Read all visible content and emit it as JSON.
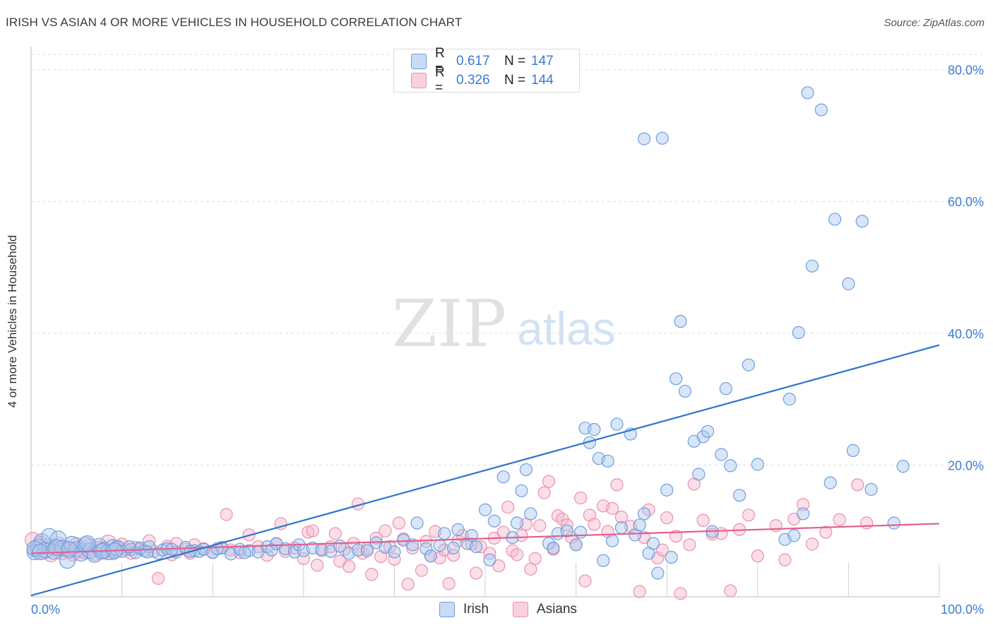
{
  "title": "IRISH VS ASIAN 4 OR MORE VEHICLES IN HOUSEHOLD CORRELATION CHART",
  "source": "Source: ZipAtlas.com",
  "watermark": {
    "zip": "ZIP",
    "atlas": "atlas"
  },
  "colors": {
    "irish_fill": "#aac8ee",
    "irish_stroke": "#6d9fe0",
    "irish_line": "#2f74d0",
    "asians_fill": "#f5b9cc",
    "asians_stroke": "#ec8fae",
    "asians_line": "#e2608e",
    "grid": "#dedede",
    "tick_label": "#3a7bd5"
  },
  "legend_top": [
    {
      "swatch": "irish",
      "r_label": "R =",
      "r_value": "0.617",
      "n_label": "N =",
      "n_value": "147"
    },
    {
      "swatch": "asians",
      "r_label": "R =",
      "r_value": "0.326",
      "n_label": "N =",
      "n_value": "144"
    }
  ],
  "legend_bottom": [
    {
      "swatch": "irish",
      "label": "Irish"
    },
    {
      "swatch": "asians",
      "label": "Asians"
    }
  ],
  "chart_data": {
    "type": "scatter",
    "title": "IRISH VS ASIAN 4 OR MORE VEHICLES IN HOUSEHOLD CORRELATION CHART",
    "xlabel": "",
    "ylabel": "4 or more Vehicles in Household",
    "xlim": [
      0,
      100
    ],
    "ylim": [
      0,
      82
    ],
    "x_ticks": [
      {
        "value": 0,
        "label": "0.0%"
      },
      {
        "value": 100,
        "label": "100.0%"
      }
    ],
    "y_ticks": [
      {
        "value": 20,
        "label": "20.0%"
      },
      {
        "value": 40,
        "label": "40.0%"
      },
      {
        "value": 60,
        "label": "60.0%"
      },
      {
        "value": 80,
        "label": "80.0%"
      }
    ],
    "grid": true,
    "legend_position": "top-center",
    "series": [
      {
        "name": "Irish",
        "points": [
          [
            0.4,
            6.8
          ],
          [
            0.8,
            7.6
          ],
          [
            1.2,
            8.4
          ],
          [
            1.6,
            7.1
          ],
          [
            2.0,
            9.2
          ],
          [
            2.5,
            6.9
          ],
          [
            3.0,
            8.8
          ],
          [
            3.5,
            7.4
          ],
          [
            4.0,
            5.5
          ],
          [
            4.5,
            8.0
          ],
          [
            5.0,
            7.2
          ],
          [
            5.5,
            6.6
          ],
          [
            6.0,
            7.9
          ],
          [
            6.5,
            7.0
          ],
          [
            7.0,
            6.4
          ],
          [
            7.5,
            7.7
          ],
          [
            8.0,
            7.1
          ],
          [
            8.5,
            6.8
          ],
          [
            9.0,
            7.5
          ],
          [
            9.5,
            7.3
          ],
          [
            10.0,
            6.9
          ],
          [
            11.0,
            7.2
          ],
          [
            11.5,
            6.7
          ],
          [
            12.0,
            7.4
          ],
          [
            12.5,
            7.0
          ],
          [
            13.0,
            7.6
          ],
          [
            14.0,
            6.6
          ],
          [
            14.5,
            7.1
          ],
          [
            15.0,
            7.3
          ],
          [
            16.0,
            6.8
          ],
          [
            17.0,
            7.5
          ],
          [
            18.0,
            7.0
          ],
          [
            18.5,
            6.9
          ],
          [
            19.0,
            7.2
          ],
          [
            20.0,
            6.7
          ],
          [
            21.0,
            7.4
          ],
          [
            22.0,
            6.5
          ],
          [
            23.0,
            7.2
          ],
          [
            24.0,
            7.0
          ],
          [
            25.0,
            6.8
          ],
          [
            26.0,
            7.6
          ],
          [
            27.0,
            8.1
          ],
          [
            28.0,
            7.3
          ],
          [
            29.0,
            6.8
          ],
          [
            29.5,
            7.9
          ],
          [
            30.0,
            7.0
          ],
          [
            31.0,
            7.4
          ],
          [
            32.0,
            7.2
          ],
          [
            33.0,
            6.9
          ],
          [
            34.0,
            7.7
          ],
          [
            35.0,
            6.6
          ],
          [
            36.0,
            7.1
          ],
          [
            37.0,
            7.0
          ],
          [
            38.0,
            8.2
          ],
          [
            39.0,
            7.5
          ],
          [
            40.0,
            6.8
          ],
          [
            41.0,
            8.6
          ],
          [
            42.0,
            7.9
          ],
          [
            42.5,
            11.2
          ],
          [
            43.5,
            7.3
          ],
          [
            44.0,
            6.2
          ],
          [
            45.0,
            7.8
          ],
          [
            45.5,
            9.6
          ],
          [
            46.5,
            7.4
          ],
          [
            47.0,
            10.2
          ],
          [
            48.0,
            8.1
          ],
          [
            48.5,
            9.3
          ],
          [
            49.0,
            7.6
          ],
          [
            50.0,
            13.2
          ],
          [
            50.5,
            5.6
          ],
          [
            51.0,
            11.5
          ],
          [
            52.0,
            18.2
          ],
          [
            53.0,
            9.0
          ],
          [
            53.5,
            11.2
          ],
          [
            54.0,
            16.1
          ],
          [
            54.5,
            19.3
          ],
          [
            55.0,
            12.6
          ],
          [
            57.0,
            8.1
          ],
          [
            57.5,
            7.4
          ],
          [
            58.0,
            9.6
          ],
          [
            59.0,
            10.0
          ],
          [
            60.0,
            7.9
          ],
          [
            60.5,
            9.8
          ],
          [
            61.0,
            25.6
          ],
          [
            61.5,
            23.4
          ],
          [
            62.0,
            25.4
          ],
          [
            62.5,
            21.0
          ],
          [
            63.0,
            5.5
          ],
          [
            63.5,
            20.6
          ],
          [
            64.0,
            8.5
          ],
          [
            64.5,
            26.2
          ],
          [
            65.0,
            10.5
          ],
          [
            66.0,
            24.7
          ],
          [
            66.5,
            9.4
          ],
          [
            67.0,
            10.9
          ],
          [
            67.5,
            12.6
          ],
          [
            68.0,
            6.6
          ],
          [
            68.5,
            8.1
          ],
          [
            69.0,
            3.6
          ],
          [
            70.0,
            16.2
          ],
          [
            70.5,
            6.0
          ],
          [
            71.0,
            33.1
          ],
          [
            71.5,
            41.8
          ],
          [
            72.0,
            31.2
          ],
          [
            73.0,
            23.6
          ],
          [
            73.5,
            18.6
          ],
          [
            74.0,
            24.3
          ],
          [
            74.5,
            25.1
          ],
          [
            75.0,
            9.9
          ],
          [
            76.0,
            21.6
          ],
          [
            76.5,
            31.6
          ],
          [
            77.0,
            19.9
          ],
          [
            78.0,
            15.4
          ],
          [
            79.0,
            35.2
          ],
          [
            80.0,
            20.1
          ],
          [
            83.0,
            8.7
          ],
          [
            83.5,
            30.0
          ],
          [
            84.0,
            9.3
          ],
          [
            84.5,
            40.1
          ],
          [
            85.0,
            12.6
          ],
          [
            85.5,
            76.5
          ],
          [
            86.0,
            50.2
          ],
          [
            87.0,
            73.9
          ],
          [
            88.0,
            17.3
          ],
          [
            88.5,
            57.3
          ],
          [
            90.0,
            47.5
          ],
          [
            90.5,
            22.2
          ],
          [
            91.5,
            57.0
          ],
          [
            92.5,
            16.3
          ],
          [
            95.0,
            11.2
          ],
          [
            96.0,
            19.8
          ],
          [
            69.5,
            69.6
          ],
          [
            67.5,
            69.5
          ],
          [
            0.4,
            7.3
          ],
          [
            1.0,
            6.8
          ],
          [
            2.8,
            7.5
          ],
          [
            4.2,
            7.2
          ],
          [
            6.2,
            8.1
          ],
          [
            7.8,
            6.9
          ],
          [
            9.2,
            7.0
          ],
          [
            10.8,
            7.6
          ],
          [
            12.8,
            6.8
          ],
          [
            15.5,
            7.2
          ],
          [
            17.5,
            6.9
          ],
          [
            20.5,
            7.3
          ],
          [
            23.5,
            6.7
          ],
          [
            26.5,
            7.1
          ]
        ],
        "trend": [
          [
            0,
            0.2
          ],
          [
            100,
            38.2
          ]
        ]
      },
      {
        "name": "Asians",
        "points": [
          [
            0.2,
            8.6
          ],
          [
            0.6,
            7.2
          ],
          [
            1.0,
            8.0
          ],
          [
            1.4,
            6.9
          ],
          [
            1.8,
            7.6
          ],
          [
            2.2,
            6.5
          ],
          [
            2.6,
            7.3
          ],
          [
            3.0,
            7.9
          ],
          [
            3.4,
            6.8
          ],
          [
            3.8,
            7.4
          ],
          [
            4.2,
            7.0
          ],
          [
            4.6,
            6.6
          ],
          [
            5.0,
            7.8
          ],
          [
            5.5,
            7.1
          ],
          [
            6.0,
            6.9
          ],
          [
            6.5,
            7.6
          ],
          [
            7.0,
            6.7
          ],
          [
            7.5,
            7.3
          ],
          [
            8.0,
            7.0
          ],
          [
            8.5,
            8.2
          ],
          [
            9.0,
            6.8
          ],
          [
            9.5,
            7.4
          ],
          [
            10.0,
            8.0
          ],
          [
            10.5,
            7.1
          ],
          [
            11.0,
            6.6
          ],
          [
            11.5,
            7.5
          ],
          [
            12.0,
            7.2
          ],
          [
            13.0,
            8.5
          ],
          [
            13.5,
            6.9
          ],
          [
            14.0,
            2.8
          ],
          [
            15.0,
            7.7
          ],
          [
            15.5,
            6.4
          ],
          [
            16.0,
            8.1
          ],
          [
            17.0,
            7.2
          ],
          [
            17.5,
            6.6
          ],
          [
            18.0,
            7.9
          ],
          [
            19.0,
            7.3
          ],
          [
            20.0,
            6.8
          ],
          [
            21.0,
            7.5
          ],
          [
            21.5,
            12.5
          ],
          [
            22.0,
            7.1
          ],
          [
            23.0,
            6.7
          ],
          [
            24.0,
            9.4
          ],
          [
            25.0,
            7.6
          ],
          [
            26.0,
            6.3
          ],
          [
            27.0,
            8.0
          ],
          [
            27.5,
            11.1
          ],
          [
            28.0,
            6.9
          ],
          [
            29.0,
            7.4
          ],
          [
            30.0,
            5.8
          ],
          [
            30.5,
            9.8
          ],
          [
            31.0,
            10.0
          ],
          [
            31.5,
            4.8
          ],
          [
            32.0,
            7.0
          ],
          [
            33.0,
            7.6
          ],
          [
            33.5,
            9.6
          ],
          [
            34.0,
            5.4
          ],
          [
            34.5,
            7.2
          ],
          [
            35.0,
            4.6
          ],
          [
            35.5,
            8.1
          ],
          [
            36.0,
            14.1
          ],
          [
            36.5,
            6.6
          ],
          [
            37.0,
            7.3
          ],
          [
            37.5,
            3.4
          ],
          [
            38.0,
            8.9
          ],
          [
            38.5,
            6.1
          ],
          [
            39.0,
            10.0
          ],
          [
            39.5,
            7.6
          ],
          [
            40.0,
            5.7
          ],
          [
            40.5,
            11.2
          ],
          [
            41.0,
            8.8
          ],
          [
            41.5,
            1.9
          ],
          [
            42.0,
            7.4
          ],
          [
            43.0,
            4.0
          ],
          [
            43.5,
            8.4
          ],
          [
            44.0,
            6.2
          ],
          [
            44.5,
            9.9
          ],
          [
            45.0,
            5.9
          ],
          [
            45.5,
            7.1
          ],
          [
            46.0,
            2.0
          ],
          [
            46.5,
            6.3
          ],
          [
            47.0,
            8.5
          ],
          [
            47.5,
            9.3
          ],
          [
            48.5,
            8.0
          ],
          [
            49.0,
            3.6
          ],
          [
            49.5,
            7.6
          ],
          [
            50.5,
            6.6
          ],
          [
            51.0,
            8.9
          ],
          [
            51.5,
            4.7
          ],
          [
            52.0,
            9.8
          ],
          [
            52.5,
            13.6
          ],
          [
            53.0,
            7.0
          ],
          [
            53.5,
            6.4
          ],
          [
            54.0,
            9.3
          ],
          [
            54.5,
            11.0
          ],
          [
            55.0,
            4.2
          ],
          [
            55.5,
            5.8
          ],
          [
            56.0,
            10.8
          ],
          [
            56.5,
            15.8
          ],
          [
            57.0,
            17.5
          ],
          [
            57.5,
            7.2
          ],
          [
            58.0,
            12.3
          ],
          [
            58.5,
            11.8
          ],
          [
            59.0,
            10.9
          ],
          [
            59.5,
            9.0
          ],
          [
            60.0,
            7.9
          ],
          [
            60.5,
            15.0
          ],
          [
            61.0,
            2.4
          ],
          [
            61.5,
            12.4
          ],
          [
            62.0,
            11.0
          ],
          [
            63.0,
            13.8
          ],
          [
            63.5,
            9.9
          ],
          [
            64.0,
            13.4
          ],
          [
            64.5,
            17.0
          ],
          [
            65.0,
            12.1
          ],
          [
            66.0,
            10.7
          ],
          [
            67.0,
            0.8
          ],
          [
            67.5,
            9.0
          ],
          [
            68.0,
            13.2
          ],
          [
            69.0,
            5.9
          ],
          [
            69.5,
            7.1
          ],
          [
            70.0,
            12.0
          ],
          [
            71.0,
            9.2
          ],
          [
            71.5,
            0.5
          ],
          [
            72.5,
            7.9
          ],
          [
            73.0,
            17.1
          ],
          [
            74.0,
            11.6
          ],
          [
            75.0,
            9.5
          ],
          [
            76.0,
            9.6
          ],
          [
            77.0,
            0.9
          ],
          [
            78.0,
            10.2
          ],
          [
            79.0,
            12.4
          ],
          [
            80.0,
            6.2
          ],
          [
            82.0,
            10.8
          ],
          [
            83.0,
            5.6
          ],
          [
            84.0,
            11.8
          ],
          [
            85.0,
            14.0
          ],
          [
            86.0,
            8.0
          ],
          [
            87.5,
            9.8
          ],
          [
            89.0,
            11.7
          ],
          [
            91.0,
            17.0
          ],
          [
            92.0,
            11.2
          ]
        ],
        "trend": [
          [
            0,
            6.6
          ],
          [
            100,
            11.1
          ]
        ]
      }
    ]
  }
}
